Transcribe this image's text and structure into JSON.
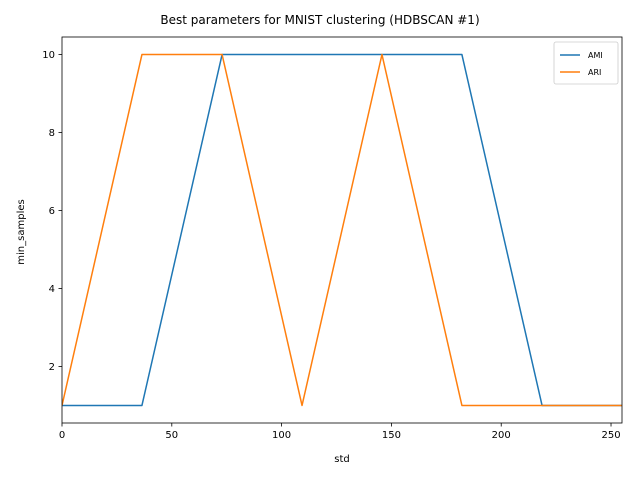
{
  "chart_data": {
    "type": "line",
    "title": "Best parameters for MNIST clustering (HDBSCAN #1)",
    "xlabel": "std",
    "ylabel": "min_samples",
    "xlim": [
      0,
      255
    ],
    "ylim": [
      0.55,
      10.45
    ],
    "xticks": [
      0,
      50,
      100,
      150,
      200,
      250
    ],
    "yticks": [
      2,
      4,
      6,
      8,
      10
    ],
    "grid": false,
    "legend_position": "top-right",
    "series": [
      {
        "name": "AMI",
        "color": "#1f77b4",
        "x": [
          0,
          36.4,
          72.9,
          109.3,
          145.7,
          182.1,
          218.6,
          255
        ],
        "y": [
          1,
          1,
          10,
          10,
          10,
          10,
          1,
          1
        ]
      },
      {
        "name": "ARI",
        "color": "#ff7f0e",
        "x": [
          0,
          36.4,
          72.9,
          109.3,
          145.7,
          182.1,
          218.6,
          255
        ],
        "y": [
          1,
          10,
          10,
          1,
          10,
          1,
          1,
          1
        ]
      }
    ]
  }
}
